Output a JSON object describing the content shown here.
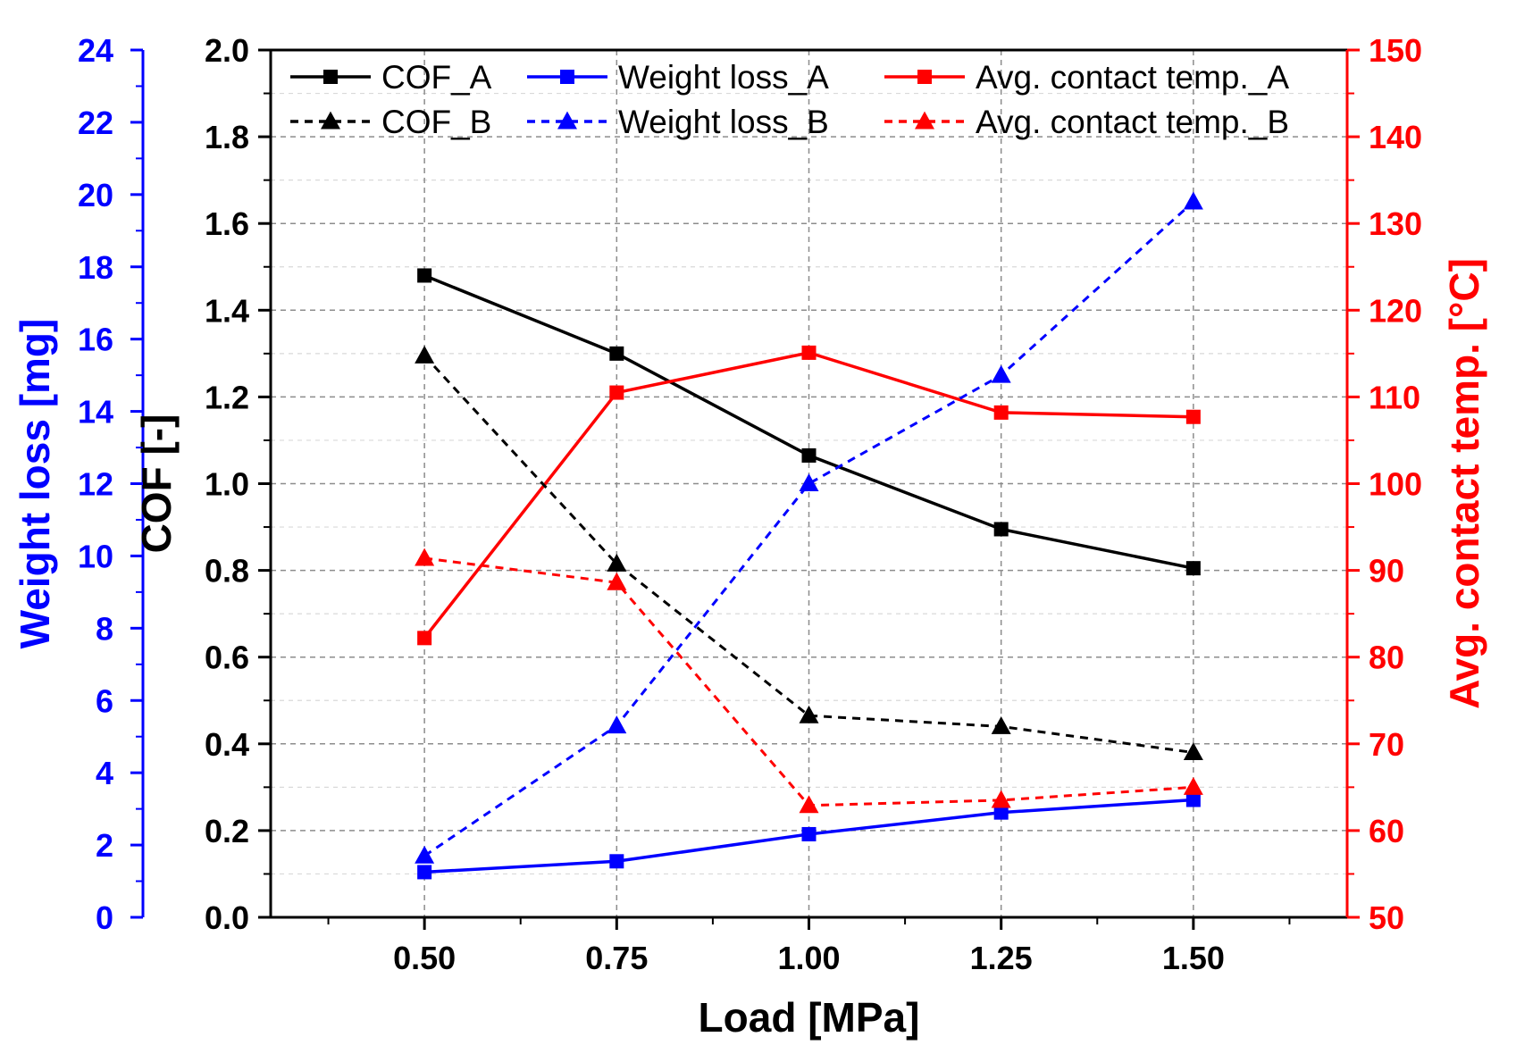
{
  "chart_data": {
    "type": "line",
    "x_axis": {
      "label": "Load [MPa]",
      "range": [
        0.3,
        1.7
      ],
      "ticks": [
        0.5,
        0.75,
        1.0,
        1.25,
        1.5
      ],
      "tick_labels": [
        "0.50",
        "0.75",
        "1.00",
        "1.25",
        "1.50"
      ]
    },
    "axes": {
      "cof": {
        "label": "COF [-]",
        "range": [
          0.0,
          2.0
        ],
        "ticks": [
          "0.0",
          "0.2",
          "0.4",
          "0.6",
          "0.8",
          "1.0",
          "1.2",
          "1.4",
          "1.6",
          "1.8",
          "2.0"
        ],
        "color": "#000000"
      },
      "weight": {
        "label": "Weight loss [mg]",
        "range": [
          0,
          24
        ],
        "ticks": [
          "0",
          "2",
          "4",
          "6",
          "8",
          "10",
          "12",
          "14",
          "16",
          "18",
          "20",
          "22",
          "24"
        ],
        "color": "#0000ff"
      },
      "temp": {
        "label": "Avg. contact temp. [°C]",
        "range": [
          50,
          150
        ],
        "ticks": [
          "50",
          "60",
          "70",
          "80",
          "90",
          "100",
          "110",
          "120",
          "130",
          "140",
          "150"
        ],
        "color": "#ff0000"
      }
    },
    "grid": true,
    "legend_position": "top",
    "series": [
      {
        "name": "COF_A",
        "axis": "cof",
        "color": "#000000",
        "dashed": false,
        "marker": "square",
        "x": [
          0.5,
          0.75,
          1.0,
          1.25,
          1.5
        ],
        "y": [
          1.48,
          1.3,
          1.065,
          0.895,
          0.805
        ]
      },
      {
        "name": "Weight loss_A",
        "axis": "weight",
        "color": "#0000ff",
        "dashed": false,
        "marker": "square",
        "x": [
          0.5,
          0.75,
          1.0,
          1.25,
          1.5
        ],
        "y": [
          1.25,
          1.55,
          2.3,
          2.9,
          3.25
        ]
      },
      {
        "name": "Avg. contact temp._A",
        "axis": "temp",
        "color": "#ff0000",
        "dashed": false,
        "marker": "square",
        "x": [
          0.5,
          0.75,
          1.0,
          1.25,
          1.5
        ],
        "y": [
          82.2,
          110.5,
          115.1,
          108.2,
          107.7
        ]
      },
      {
        "name": "COF_B",
        "axis": "cof",
        "color": "#000000",
        "dashed": true,
        "marker": "triangle",
        "x": [
          0.5,
          0.75,
          1.0,
          1.25,
          1.5
        ],
        "y": [
          1.295,
          0.815,
          0.465,
          0.44,
          0.38
        ]
      },
      {
        "name": "Weight loss_B",
        "axis": "weight",
        "color": "#0000ff",
        "dashed": true,
        "marker": "triangle",
        "x": [
          0.5,
          0.75,
          1.0,
          1.25,
          1.5
        ],
        "y": [
          1.7,
          5.3,
          12.0,
          15.0,
          19.8
        ]
      },
      {
        "name": "Avg. contact temp._B",
        "axis": "temp",
        "color": "#ff0000",
        "dashed": true,
        "marker": "triangle",
        "x": [
          0.5,
          0.75,
          1.0,
          1.25,
          1.5
        ],
        "y": [
          91.4,
          88.6,
          62.9,
          63.5,
          65.0
        ]
      }
    ]
  }
}
